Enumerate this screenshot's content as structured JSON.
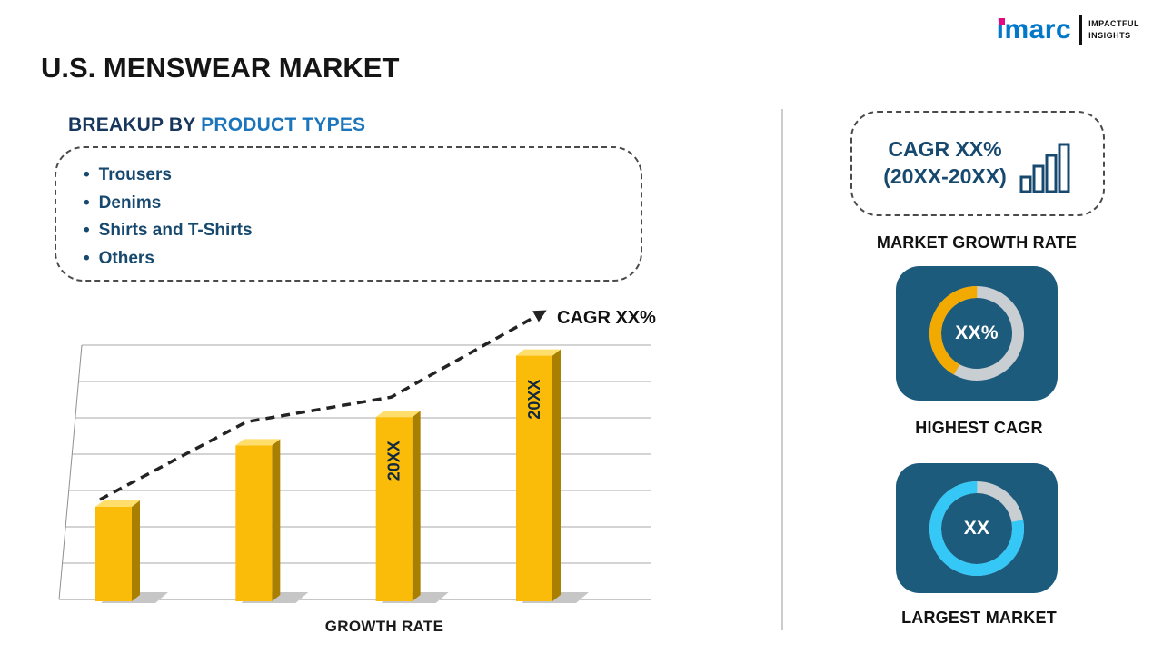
{
  "title": "U.S. MENSWEAR MARKET",
  "logo": {
    "brand": "imarc",
    "tagline_line1": "IMPACTFUL",
    "tagline_line2": "INSIGHTS",
    "brand_color": "#0077C8",
    "accent_color": "#E5097F"
  },
  "breakup": {
    "heading_prefix": "BREAKUP BY",
    "heading_highlight": "PRODUCT TYPES",
    "items": [
      "Trousers",
      "Denims",
      "Shirts and T-Shirts",
      "Others"
    ]
  },
  "chart_data": [
    {
      "type": "bar",
      "bar_labels": [
        "",
        "",
        "20XX",
        "20XX"
      ],
      "values": [
        10,
        16.5,
        19.5,
        26
      ],
      "ylim": [
        0,
        28
      ],
      "xlabel": "GROWTH RATE",
      "trend_label": "CAGR XX%",
      "bar_color": "#FBBC09",
      "bar_side_color": "#A87F00",
      "bar_top_color": "#FFDE6B",
      "grid": true
    },
    {
      "type": "donut",
      "value": "XX%",
      "label": "HIGHEST CAGR",
      "percent": 42,
      "sweep": "ccw",
      "offset_percent": 0,
      "arc_color": "#F2A900",
      "track_color": "#C9CED3",
      "card_color": "#1D5B7C"
    },
    {
      "type": "donut",
      "value": "XX",
      "label": "LARGEST MARKET",
      "percent": 78,
      "sweep": "cw",
      "offset_percent": 22,
      "arc_color": "#35C7F5",
      "track_color": "#C9CED3",
      "card_color": "#1D5B7C"
    }
  ],
  "right_panel": {
    "cagr_box": {
      "line1": "CAGR XX%",
      "line2": "(20XX-20XX)"
    },
    "market_growth_label": "MARKET GROWTH RATE"
  }
}
